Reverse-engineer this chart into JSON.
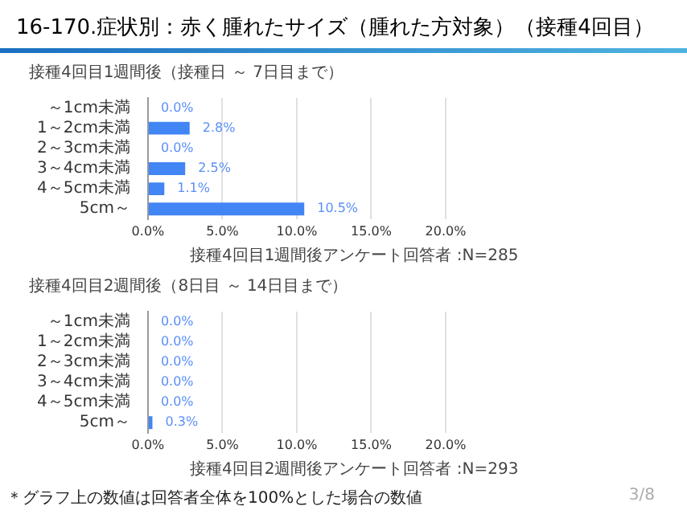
{
  "chart_data": [
    {
      "type": "bar",
      "orientation": "horizontal",
      "title": "16-170.症状別：赤く腫れたサイズ（腫れた方対象）（接種4回目）",
      "subtitle": "接種4回目1週間後（接種日 ～ 7日目まで）",
      "categories": [
        "～1cm未満",
        "1～2cm未満",
        "2～3cm未満",
        "3～4cm未満",
        "4～5cm未満",
        "5cm～"
      ],
      "values": [
        0,
        2.8,
        0,
        2.5,
        1.1,
        10.5
      ],
      "value_labels": [
        "0.0%",
        "2.8%",
        "0.0%",
        "2.5%",
        "1.1%",
        "10.5%"
      ],
      "color": "#4285f4",
      "xlim": [
        0,
        20
      ],
      "xticks": [
        {
          "value": 0,
          "label": "0.0%"
        },
        {
          "value": 5,
          "label": "5.0%"
        },
        {
          "value": 10,
          "label": "10.0%"
        },
        {
          "value": 15,
          "label": "15.0%"
        },
        {
          "value": 20,
          "label": "20.0%"
        }
      ],
      "grid": "x",
      "annotations": [
        "接種4回目1週間後アンケート回答者 :N=285"
      ]
    },
    {
      "type": "bar",
      "orientation": "horizontal",
      "subtitle": "接種4回目2週間後（8日目 ～ 14日目まで）",
      "categories": [
        "～1cm未満",
        "1～2cm未満",
        "2～3cm未満",
        "3～4cm未満",
        "4～5cm未満",
        "5cm～"
      ],
      "values": [
        0,
        0,
        0,
        0,
        0,
        0.3
      ],
      "value_labels": [
        "0.0%",
        "0.0%",
        "0.0%",
        "0.0%",
        "0.0%",
        "0.3%"
      ],
      "color": "#4285f4",
      "xlim": [
        0,
        20
      ],
      "xticks": [
        {
          "value": 0,
          "label": "0.0%"
        },
        {
          "value": 5,
          "label": "5.0%"
        },
        {
          "value": 10,
          "label": "10.0%"
        },
        {
          "value": 15,
          "label": "15.0%"
        },
        {
          "value": 20,
          "label": "20.0%"
        }
      ],
      "grid": "x",
      "annotations": [
        "接種4回目2週間後アンケート回答者 :N=293",
        "＊グラフ上の数値は回答者全体を100%とした場合の数値",
        "3/8"
      ]
    }
  ]
}
